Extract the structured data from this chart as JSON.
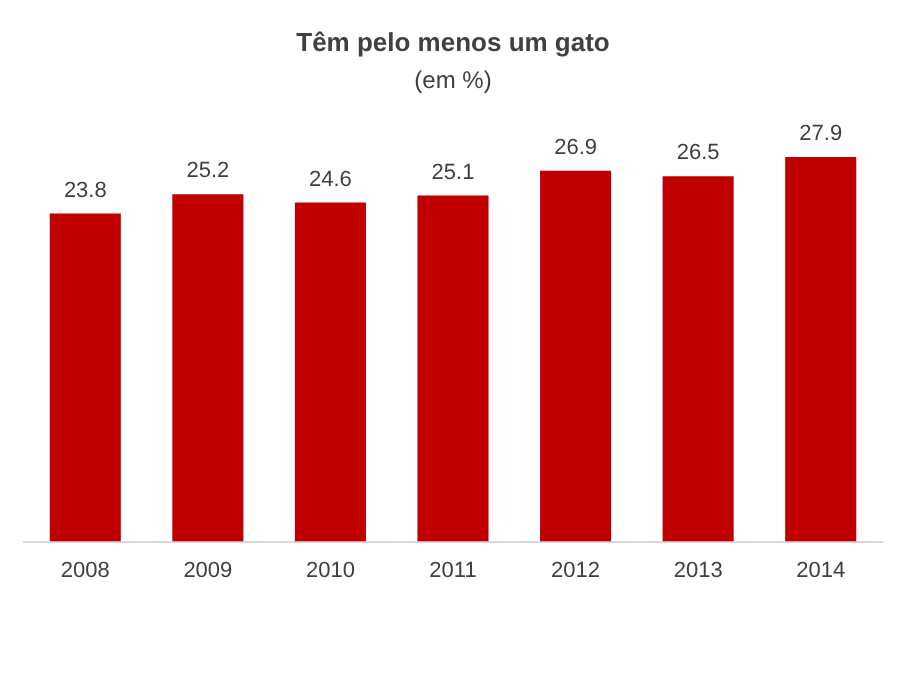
{
  "chart_data": {
    "type": "bar",
    "title": "Têm pelo menos um gato",
    "subtitle": "(em %)",
    "categories": [
      "2008",
      "2009",
      "2010",
      "2011",
      "2012",
      "2013",
      "2014"
    ],
    "values": [
      23.8,
      25.2,
      24.6,
      25.1,
      26.9,
      26.5,
      27.9
    ],
    "color": "#c00000",
    "data_labels": true,
    "grid": false,
    "legend": false
  }
}
